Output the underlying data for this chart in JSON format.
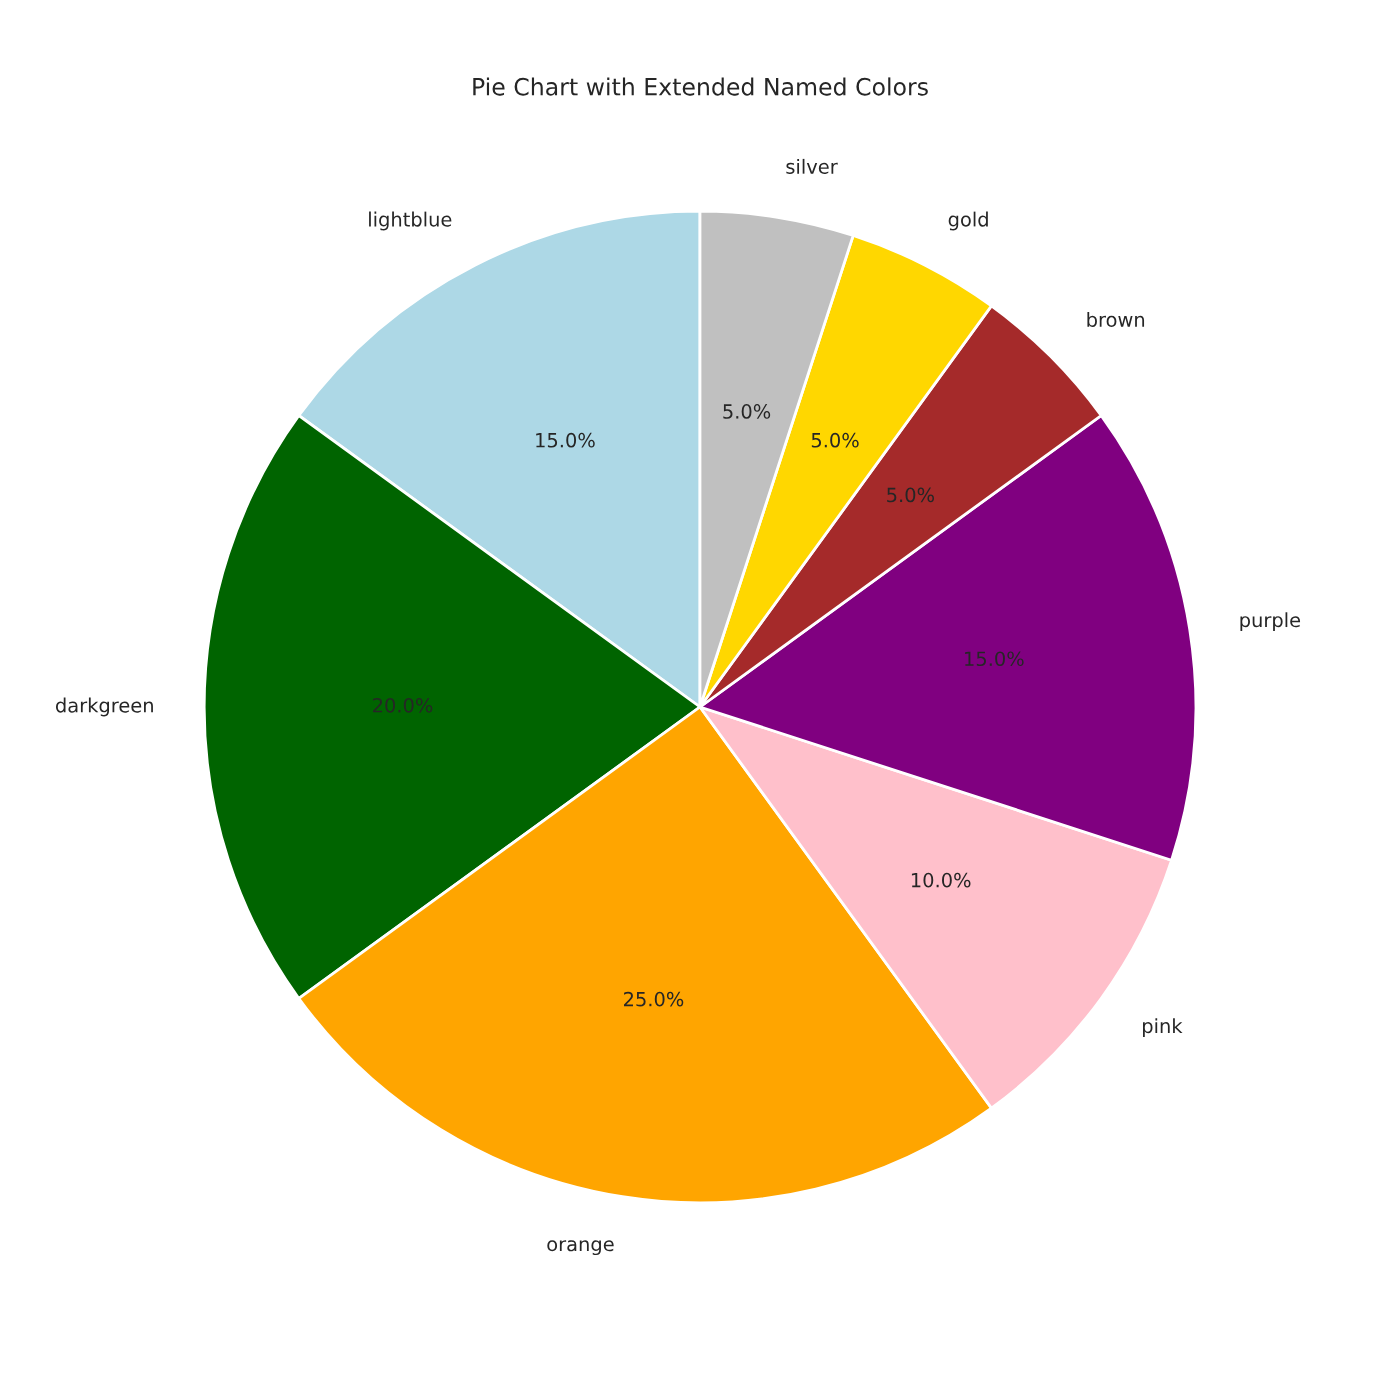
{
  "chart_data": {
    "type": "pie",
    "title": "Pie Chart with Extended Named Colors",
    "categories": [
      "lightblue",
      "darkgreen",
      "orange",
      "pink",
      "purple",
      "brown",
      "gold",
      "silver"
    ],
    "values": [
      15,
      20,
      25,
      10,
      15,
      5,
      5,
      5
    ],
    "colors": [
      "#add8e6",
      "#006400",
      "#ffa500",
      "#ffc0cb",
      "#800080",
      "#a52a2a",
      "#ffd700",
      "#c0c0c0"
    ],
    "value_labels": [
      "15.0%",
      "20.0%",
      "25.0%",
      "10.0%",
      "15.0%",
      "5.0%",
      "5.0%",
      "5.0%"
    ]
  }
}
